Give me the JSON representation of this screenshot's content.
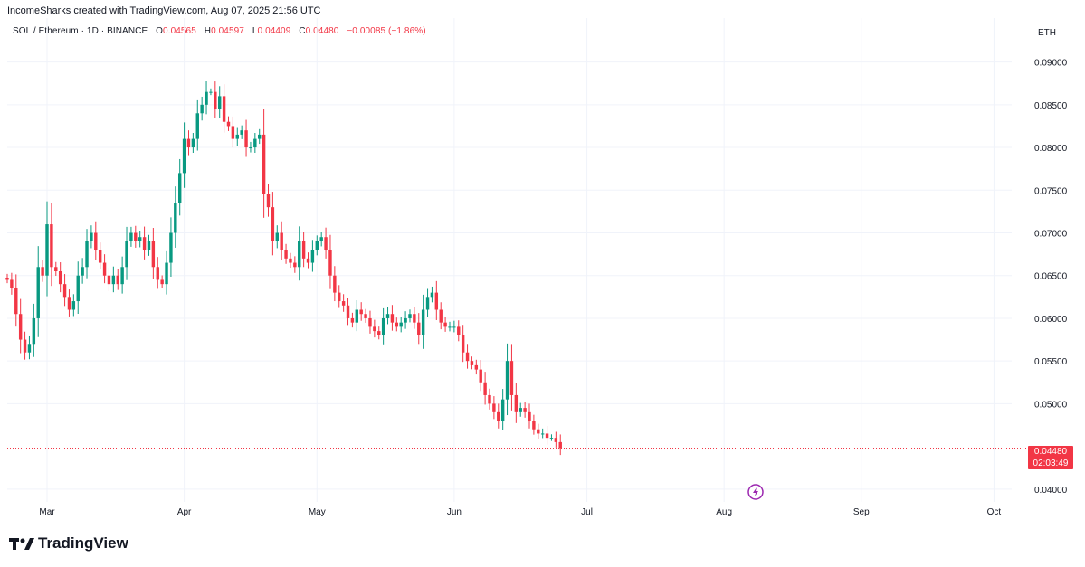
{
  "header": {
    "credit": "IncomeSharks created with TradingView.com, Aug 07, 2025 21:56 UTC"
  },
  "legend": {
    "symbol": "SOL / Ethereum · 1D · BINANCE",
    "open_label": "O",
    "open": "0.04565",
    "high_label": "H",
    "high": "0.04597",
    "low_label": "L",
    "low": "0.04409",
    "close_label": "C",
    "close": "0.04480",
    "change": "−0.00085 (−1.86%)"
  },
  "currency": "ETH",
  "last_price": {
    "value": "0.04480",
    "countdown": "02:03:49"
  },
  "footer": {
    "brand": "TradingView"
  },
  "colors": {
    "up": "#089981",
    "down": "#f23645",
    "grid": "#f0f3fa",
    "axis_text": "#131722"
  },
  "chart_data": {
    "type": "candlestick",
    "title": "",
    "y_axis": {
      "side": "right",
      "ylim": [
        0.0385,
        0.0925
      ],
      "ticks": [
        "0.09000",
        "0.08500",
        "0.08000",
        "0.07500",
        "0.07000",
        "0.06500",
        "0.06000",
        "0.05500",
        "0.05000",
        "0.04000"
      ]
    },
    "x_axis": {
      "start": "2025-02-20",
      "end": "2025-10-05",
      "ticks": [
        {
          "date": "2025-03-01",
          "label": "Mar"
        },
        {
          "date": "2025-04-01",
          "label": "Apr"
        },
        {
          "date": "2025-05-01",
          "label": "May"
        },
        {
          "date": "2025-06-01",
          "label": "Jun"
        },
        {
          "date": "2025-07-01",
          "label": "Jul"
        },
        {
          "date": "2025-08-01",
          "label": "Aug"
        },
        {
          "date": "2025-09-01",
          "label": "Sep"
        },
        {
          "date": "2025-10-01",
          "label": "Oct"
        }
      ]
    },
    "grid": true,
    "last_close": 0.0448,
    "candles_start_date": "2025-02-20",
    "closes": [
      0.0645,
      0.0635,
      0.0605,
      0.0575,
      0.056,
      0.057,
      0.06,
      0.066,
      0.065,
      0.071,
      0.066,
      0.0655,
      0.064,
      0.0625,
      0.061,
      0.062,
      0.065,
      0.066,
      0.069,
      0.07,
      0.068,
      0.0665,
      0.065,
      0.064,
      0.065,
      0.064,
      0.066,
      0.069,
      0.07,
      0.069,
      0.0695,
      0.068,
      0.069,
      0.066,
      0.0645,
      0.064,
      0.0665,
      0.07,
      0.0735,
      0.077,
      0.081,
      0.08,
      0.081,
      0.084,
      0.085,
      0.0865,
      0.0865,
      0.0845,
      0.086,
      0.083,
      0.0825,
      0.081,
      0.0815,
      0.082,
      0.08,
      0.08,
      0.081,
      0.0815,
      0.0745,
      0.073,
      0.069,
      0.07,
      0.068,
      0.067,
      0.0665,
      0.066,
      0.069,
      0.067,
      0.0665,
      0.068,
      0.069,
      0.0695,
      0.068,
      0.065,
      0.063,
      0.062,
      0.0615,
      0.06,
      0.0595,
      0.061,
      0.0605,
      0.06,
      0.059,
      0.0585,
      0.058,
      0.06,
      0.0605,
      0.0595,
      0.059,
      0.0595,
      0.06,
      0.0605,
      0.0595,
      0.058,
      0.061,
      0.0625,
      0.063,
      0.061,
      0.0595,
      0.059,
      0.059,
      0.059,
      0.058,
      0.056,
      0.055,
      0.0545,
      0.054,
      0.0525,
      0.051,
      0.05,
      0.049,
      0.048,
      0.0505,
      0.055,
      0.051,
      0.049,
      0.0495,
      0.049,
      0.048,
      0.047,
      0.0465,
      0.0465,
      0.046,
      0.046,
      0.0455,
      0.0448
    ]
  }
}
